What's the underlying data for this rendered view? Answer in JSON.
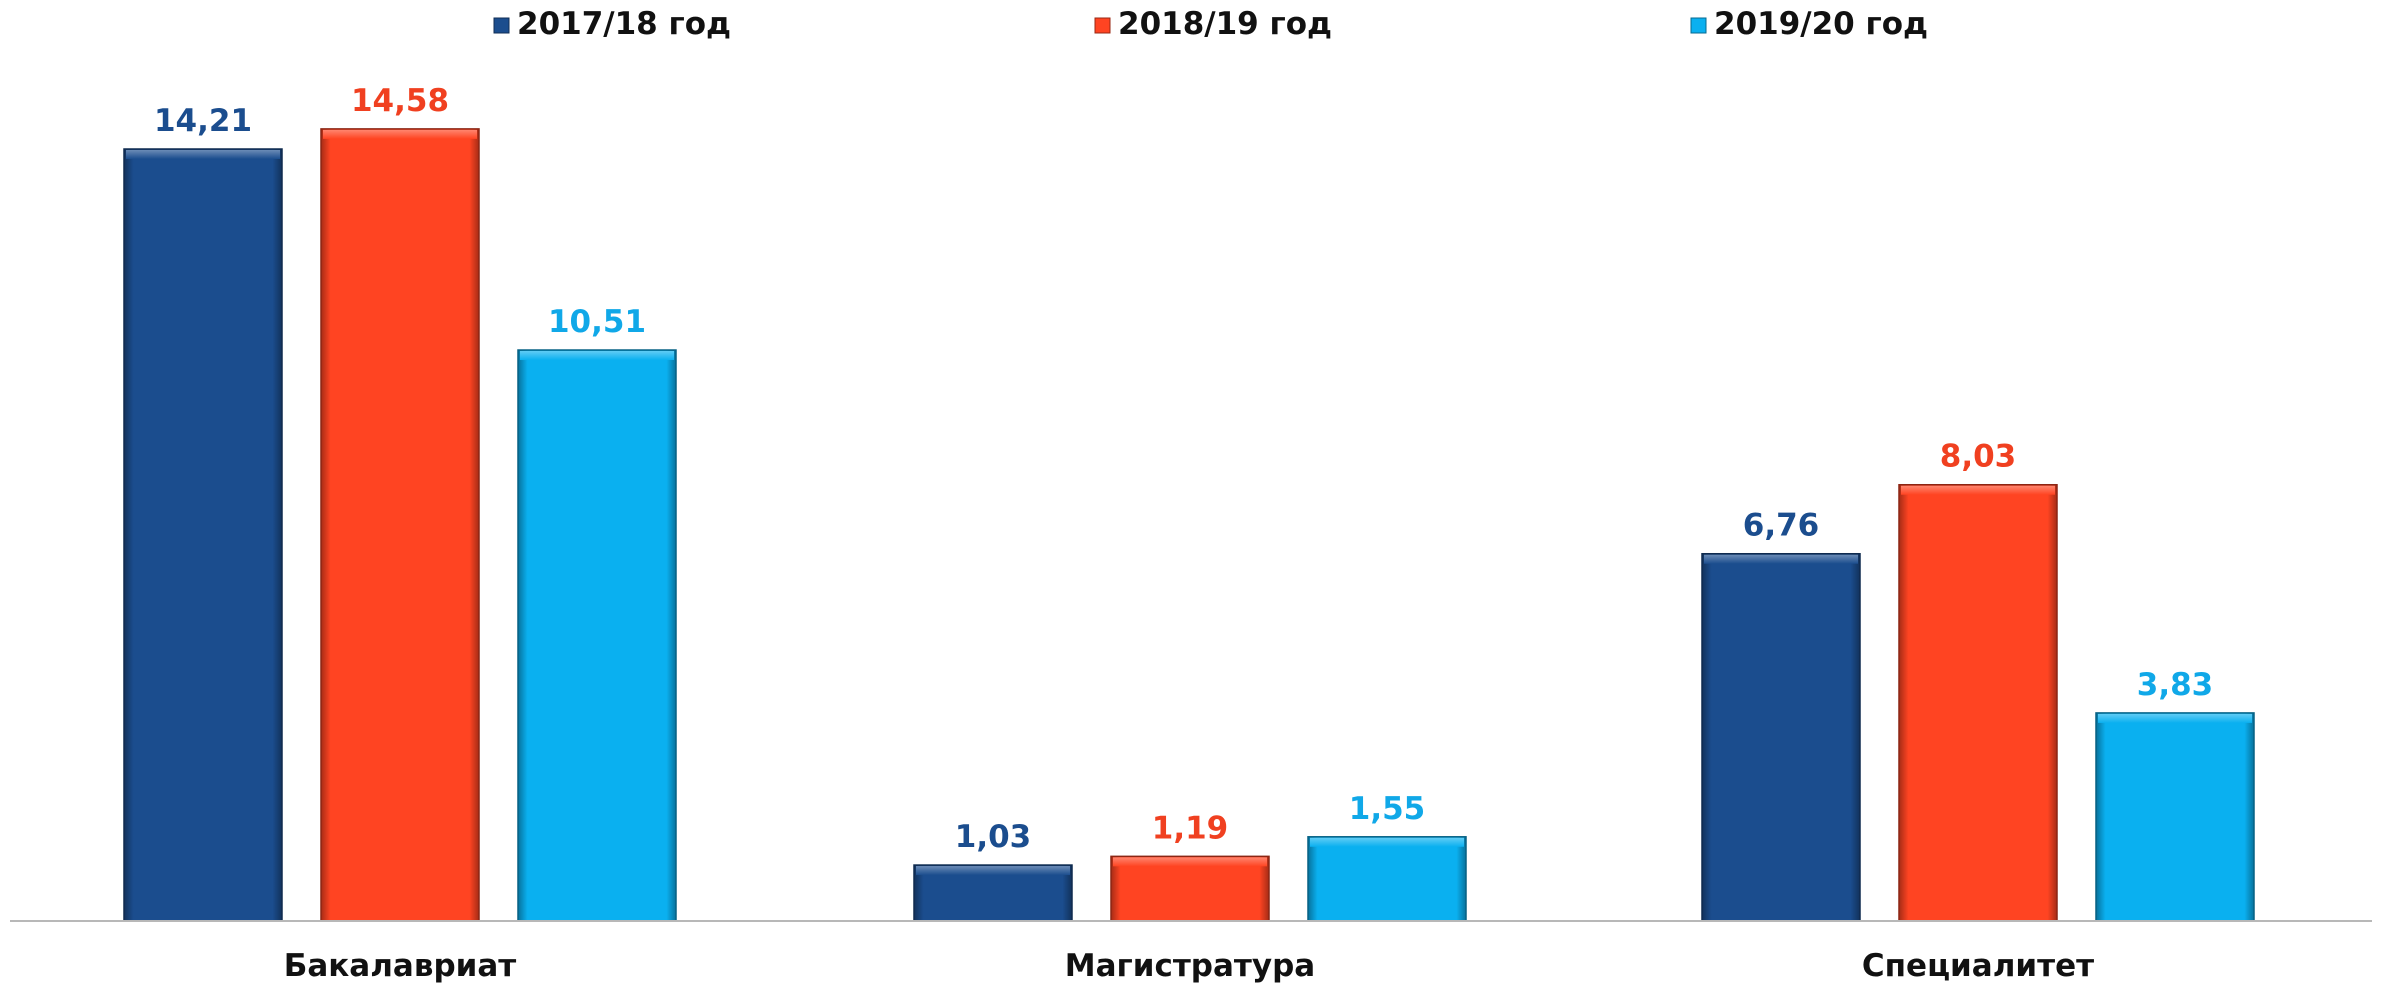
{
  "chart_data": {
    "type": "bar",
    "categories": [
      "Бакалавриат",
      "Магистратура",
      "Специалитет"
    ],
    "series": [
      {
        "name": "2017/18 год",
        "values": [
          14.21,
          1.03,
          6.76
        ],
        "labels": [
          "14,21",
          "1,03",
          "6,76"
        ],
        "color": "#1B4D8E",
        "label_color": "#1B4D8E"
      },
      {
        "name": "2018/19 год",
        "values": [
          14.58,
          1.19,
          8.03
        ],
        "labels": [
          "14,58",
          "1,19",
          "8,03"
        ],
        "color": "#FF4422",
        "label_color": "#F04020"
      },
      {
        "name": "2019/20 год",
        "values": [
          10.51,
          1.55,
          3.83
        ],
        "labels": [
          "10,51",
          "1,55",
          "3,83"
        ],
        "color": "#0AB0F0",
        "label_color": "#10A8E8"
      }
    ],
    "title": "",
    "xlabel": "",
    "ylabel": "",
    "ylim": [
      0,
      15
    ],
    "grid": false,
    "legend_position": "top"
  }
}
